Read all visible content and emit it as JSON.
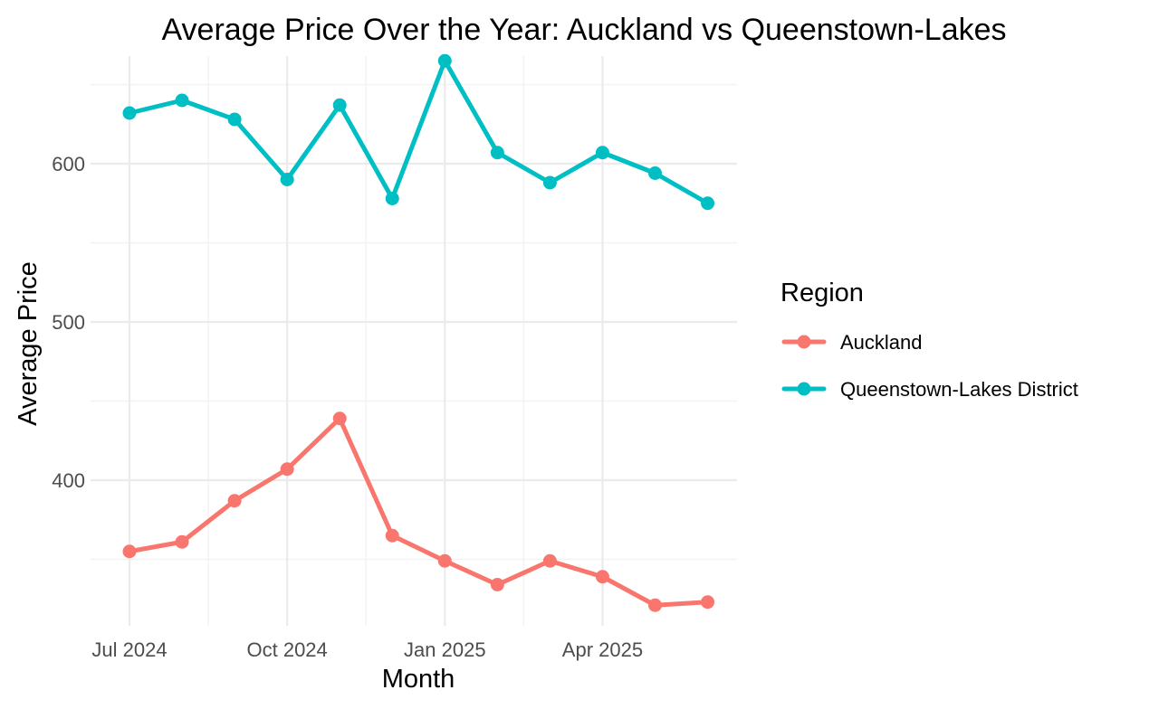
{
  "chart_data": {
    "type": "line",
    "title": "Average Price Over the Year: Auckland vs Queenstown-Lakes",
    "xlabel": "Month",
    "ylabel": "Average Price",
    "x": [
      "2024-07",
      "2024-08",
      "2024-09",
      "2024-10",
      "2024-11",
      "2024-12",
      "2025-01",
      "2025-02",
      "2025-03",
      "2025-04",
      "2025-05",
      "2025-06"
    ],
    "x_ticks": [
      {
        "value": "2024-07",
        "label": "Jul 2024"
      },
      {
        "value": "2024-10",
        "label": "Oct 2024"
      },
      {
        "value": "2025-01",
        "label": "Jan 2025"
      },
      {
        "value": "2025-04",
        "label": "Apr 2025"
      }
    ],
    "y_ticks": [
      400,
      500,
      600
    ],
    "ylim": [
      308,
      668
    ],
    "grid": true,
    "legend": {
      "title": "Region",
      "position": "right"
    },
    "series": [
      {
        "name": "Auckland",
        "color": "#F8766D",
        "values": [
          355,
          361,
          387,
          407,
          439,
          365,
          349,
          334,
          349,
          339,
          321,
          323
        ]
      },
      {
        "name": "Queenstown-Lakes District",
        "color": "#00BFC4",
        "values": [
          632,
          640,
          628,
          590,
          637,
          578,
          665,
          607,
          588,
          607,
          594,
          575
        ]
      }
    ]
  }
}
